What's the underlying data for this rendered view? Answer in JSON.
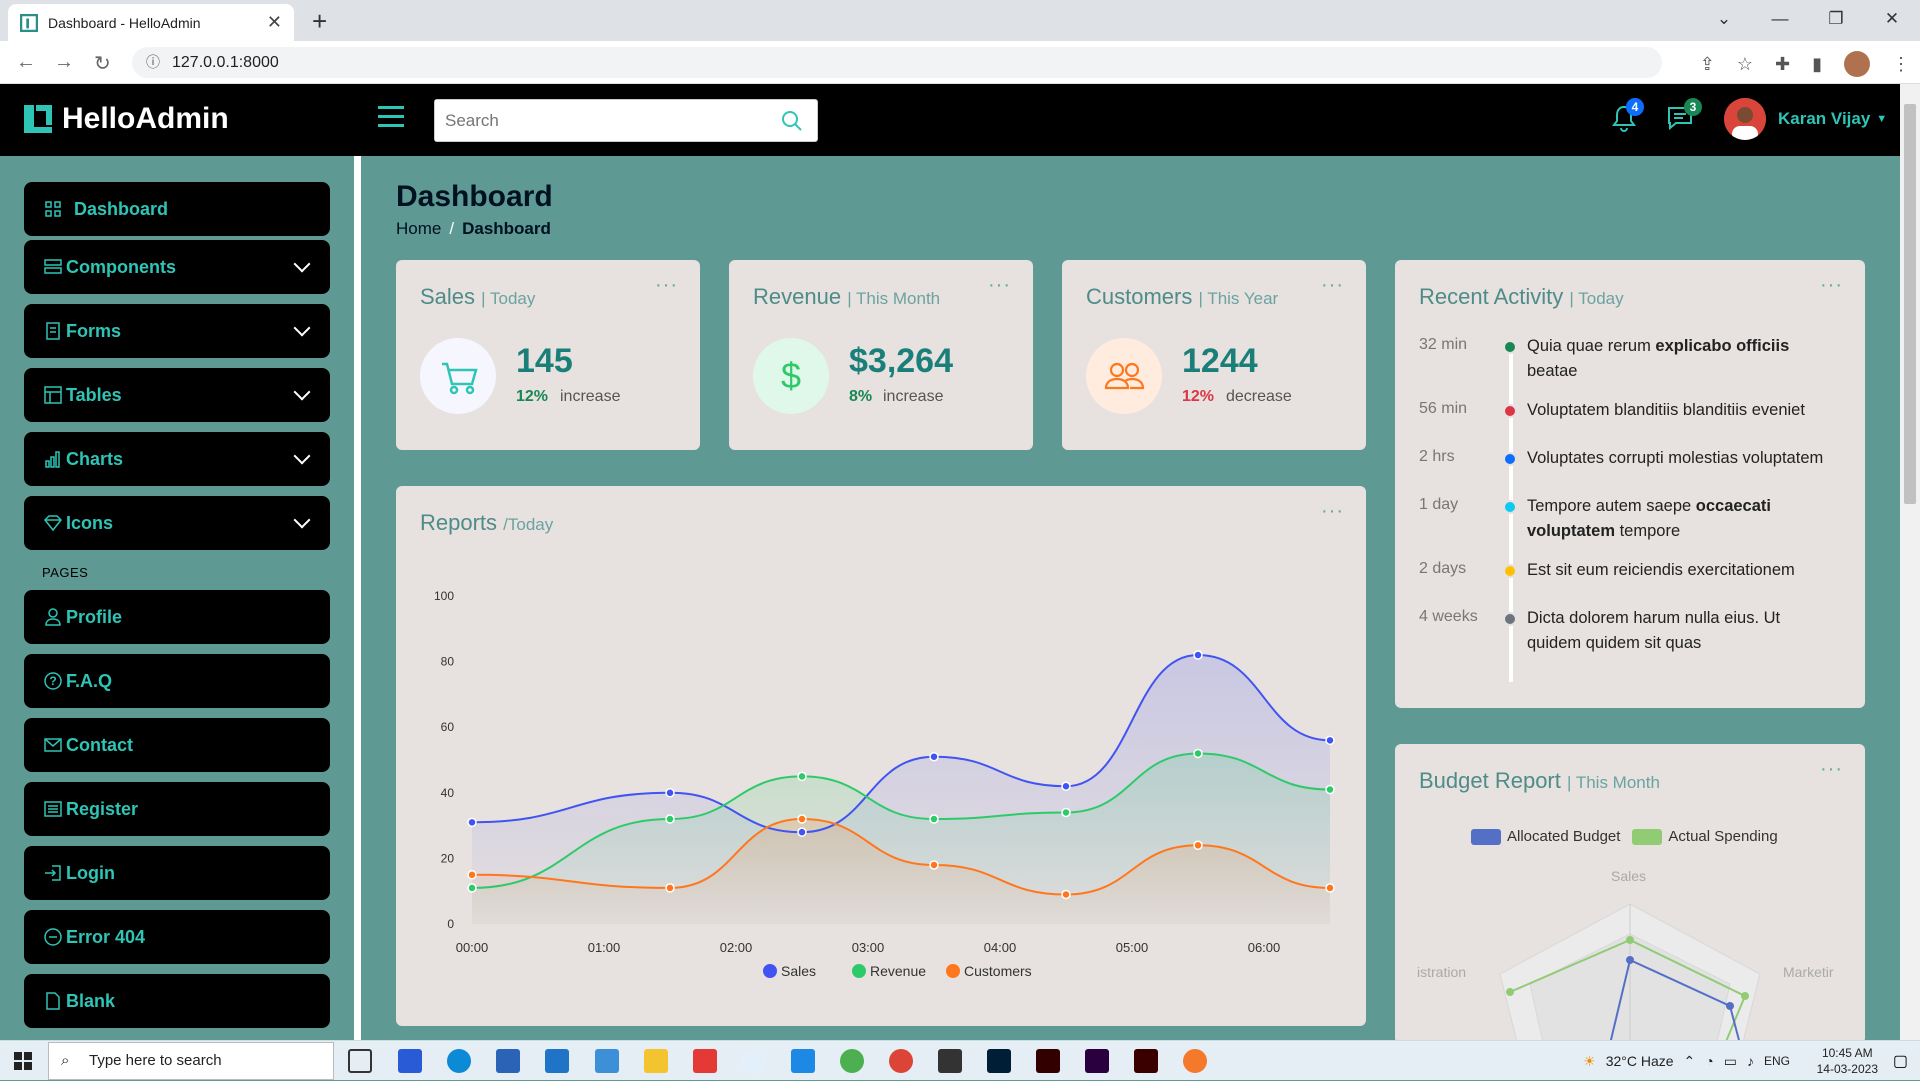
{
  "browser": {
    "tab_title": "Dashboard - HelloAdmin",
    "url": "127.0.0.1:8000"
  },
  "header": {
    "brand": "HelloAdmin",
    "search_placeholder": "Search",
    "notifications_count": "4",
    "messages_count": "3",
    "user_name": "Karan Vijay"
  },
  "sidebar": {
    "items": [
      {
        "label": "Dashboard"
      },
      {
        "label": "Components"
      },
      {
        "label": "Forms"
      },
      {
        "label": "Tables"
      },
      {
        "label": "Charts"
      },
      {
        "label": "Icons"
      }
    ],
    "pages_heading": "PAGES",
    "pages": [
      {
        "label": "Profile"
      },
      {
        "label": "F.A.Q"
      },
      {
        "label": "Contact"
      },
      {
        "label": "Register"
      },
      {
        "label": "Login"
      },
      {
        "label": "Error 404"
      },
      {
        "label": "Blank"
      }
    ]
  },
  "page": {
    "title": "Dashboard",
    "breadcrumb_home": "Home",
    "breadcrumb_sep": "/",
    "breadcrumb_current": "Dashboard"
  },
  "cards": {
    "sales": {
      "title": "Sales",
      "period": "| Today",
      "value": "145",
      "pct": "12%",
      "label": "increase"
    },
    "revenue": {
      "title": "Revenue",
      "period": "| This Month",
      "value": "$3,264",
      "pct": "8%",
      "label": "increase"
    },
    "customers": {
      "title": "Customers",
      "period": "| This Year",
      "value": "1244",
      "pct": "12%",
      "label": "decrease"
    }
  },
  "colors": {
    "accent": "#2ec4b6",
    "sales": "#4154f1",
    "revenue": "#2eca6a",
    "customers": "#ff771d",
    "increase": "#198754",
    "decrease": "#dc3545"
  },
  "reports": {
    "title": "Reports",
    "period": "/Today"
  },
  "chart_data": {
    "type": "area",
    "title": "Reports",
    "x": [
      "00:00",
      "01:00",
      "02:00",
      "03:00",
      "04:00",
      "05:00",
      "06:00"
    ],
    "x_positions_hours": [
      0,
      1.5,
      2.5,
      3.5,
      4.5,
      5.5,
      6.5
    ],
    "ylim": [
      0,
      100
    ],
    "yticks": [
      0,
      20,
      40,
      60,
      80,
      100
    ],
    "series": [
      {
        "name": "Sales",
        "points": [
          [
            0,
            31
          ],
          [
            1.5,
            40
          ],
          [
            2.5,
            28
          ],
          [
            3.5,
            51
          ],
          [
            4.5,
            42
          ],
          [
            5.5,
            82
          ],
          [
            6.5,
            56
          ]
        ]
      },
      {
        "name": "Revenue",
        "points": [
          [
            0,
            11
          ],
          [
            1.5,
            32
          ],
          [
            2.5,
            45
          ],
          [
            3.5,
            32
          ],
          [
            4.5,
            34
          ],
          [
            5.5,
            52
          ],
          [
            6.5,
            41
          ]
        ]
      },
      {
        "name": "Customers",
        "points": [
          [
            0,
            15
          ],
          [
            1.5,
            11
          ],
          [
            2.5,
            32
          ],
          [
            3.5,
            18
          ],
          [
            4.5,
            9
          ],
          [
            5.5,
            24
          ],
          [
            6.5,
            11
          ]
        ]
      }
    ],
    "legend": "bottom"
  },
  "activity": {
    "title": "Recent Activity",
    "period": "| Today",
    "items": [
      {
        "time": "32 min",
        "text": "Quia quae rerum ",
        "bold": "explicabo officiis",
        "after": " beatae",
        "color": "#198754"
      },
      {
        "time": "56 min",
        "text": "Voluptatem blanditiis blanditiis eveniet",
        "bold": "",
        "after": "",
        "color": "#dc3545"
      },
      {
        "time": "2 hrs",
        "text": "Voluptates corrupti molestias voluptatem",
        "bold": "",
        "after": "",
        "color": "#0d6efd"
      },
      {
        "time": "1 day",
        "text": "Tempore autem saepe ",
        "bold": "occaecati voluptatem",
        "after": " tempore",
        "color": "#0dcaf0"
      },
      {
        "time": "2 days",
        "text": "Est sit eum reiciendis exercitationem",
        "bold": "",
        "after": "",
        "color": "#ffc107"
      },
      {
        "time": "4 weeks",
        "text": "Dicta dolorem harum nulla eius. Ut quidem quidem sit quas",
        "bold": "",
        "after": "",
        "color": "#6c757d"
      }
    ]
  },
  "budget": {
    "title": "Budget Report",
    "period": "| This Month",
    "legend_allocated": "Allocated Budget",
    "legend_actual": "Actual Spending",
    "axis_sales": "Sales",
    "axis_marketing": "Marketir",
    "axis_admin": "istration"
  },
  "taskbar": {
    "search_placeholder": "Type here to search",
    "weather": "32°C  Haze",
    "lang": "ENG",
    "time": "10:45 AM",
    "date": "14-03-2023"
  }
}
